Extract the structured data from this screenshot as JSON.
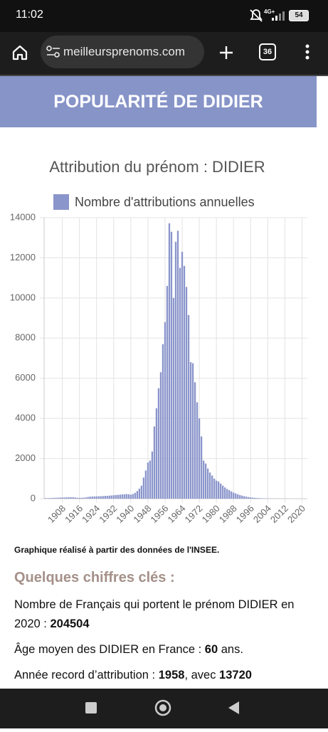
{
  "status_bar": {
    "time": "11:02",
    "network": "4G+",
    "battery": "54"
  },
  "browser": {
    "url": "meilleursprenoms.com",
    "tab_count": "36"
  },
  "header": {
    "title": "POPULARITÉ DE DIDIER"
  },
  "chart_data": {
    "type": "bar",
    "title": "Attribution du prénom : DIDIER",
    "categories": [
      null,
      null,
      null,
      null,
      null,
      null,
      null,
      null,
      "1908",
      null,
      null,
      null,
      null,
      null,
      null,
      null,
      "1916",
      null,
      null,
      null,
      null,
      null,
      null,
      null,
      "1924",
      null,
      null,
      null,
      null,
      null,
      null,
      null,
      "1932",
      null,
      null,
      null,
      null,
      null,
      null,
      null,
      "1940",
      null,
      null,
      null,
      null,
      null,
      null,
      null,
      "1948",
      null,
      null,
      null,
      null,
      null,
      null,
      null,
      "1956",
      null,
      null,
      null,
      null,
      null,
      null,
      null,
      "1964",
      null,
      null,
      null,
      null,
      null,
      null,
      null,
      "1972",
      null,
      null,
      null,
      null,
      null,
      null,
      null,
      "1980",
      null,
      null,
      null,
      null,
      null,
      null,
      null,
      "1988",
      null,
      null,
      null,
      null,
      null,
      null,
      null,
      "1996",
      null,
      null,
      null,
      null,
      null,
      null,
      null,
      "2004",
      null,
      null,
      null,
      null,
      null,
      null,
      null,
      "2012",
      null,
      null,
      null,
      null,
      null,
      null,
      null,
      "2020",
      null,
      null
    ],
    "series": [
      {
        "name": "Nombre d'attributions annuelles",
        "color": "#8a95cb",
        "values": [
          30,
          25,
          30,
          35,
          40,
          45,
          50,
          55,
          60,
          60,
          65,
          70,
          70,
          70,
          60,
          45,
          40,
          45,
          50,
          60,
          85,
          100,
          105,
          110,
          115,
          120,
          125,
          130,
          140,
          140,
          150,
          160,
          170,
          180,
          190,
          200,
          210,
          220,
          230,
          220,
          200,
          230,
          290,
          380,
          500,
          650,
          1050,
          1400,
          1800,
          1900,
          2350,
          3600,
          4500,
          5500,
          6300,
          7700,
          8800,
          10600,
          13720,
          13300,
          10000,
          12800,
          13350,
          11500,
          12300,
          11600,
          10550,
          9150,
          6800,
          6750,
          5800,
          4800,
          4000,
          3100,
          1900,
          1750,
          1500,
          1300,
          1150,
          1000,
          900,
          850,
          750,
          650,
          560,
          480,
          420,
          360,
          300,
          260,
          220,
          180,
          150,
          120,
          100,
          80,
          65,
          50,
          40,
          30,
          25,
          20,
          15,
          12,
          10,
          8,
          6,
          5,
          4,
          3,
          3,
          3,
          3,
          3,
          0,
          0,
          0,
          0,
          0,
          0,
          0,
          0,
          0
        ]
      }
    ],
    "ylim": [
      0,
      14000
    ],
    "yticks": [
      0,
      2000,
      4000,
      6000,
      8000,
      10000,
      12000,
      14000
    ],
    "grid": true,
    "legend": "top"
  },
  "source_note": "Graphique réalisé à partir des données de l'INSEE.",
  "key_figures": {
    "heading": "Quelques chiffres clés :",
    "items": [
      {
        "text": "Nombre de Français qui portent le prénom DIDIER en 2020 : ",
        "value": 204504
      },
      {
        "text": "Âge moyen des DIDIER en France : ",
        "value": 60,
        "suffix": " ans."
      },
      {
        "text": "Année record d’attribution : ",
        "year": 1958,
        "text2": ", avec ",
        "count": 13720
      }
    ]
  }
}
